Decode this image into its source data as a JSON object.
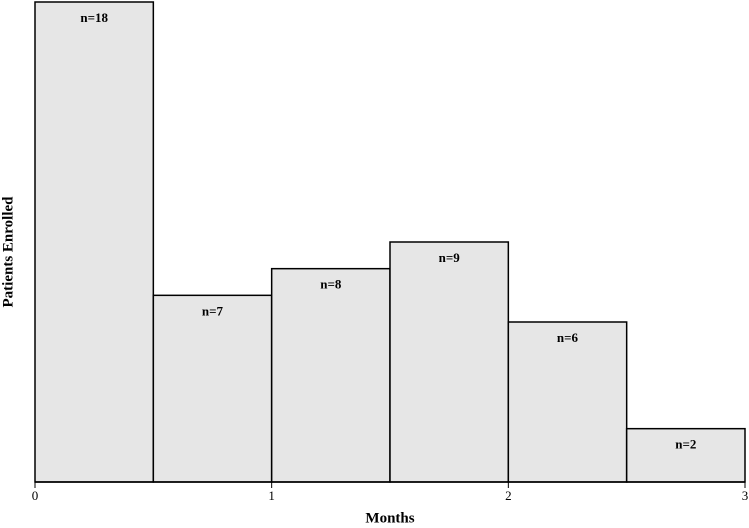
{
  "chart_data": {
    "type": "histogram",
    "x_label": "Months",
    "y_label": "Patients Enrolled",
    "bins": [
      0,
      0.5,
      1,
      1.5,
      2,
      2.5,
      3
    ],
    "values": [
      18,
      7,
      8,
      9,
      6,
      2
    ],
    "value_labels": [
      "n=18",
      "n=7",
      "n=8",
      "n=9",
      "n=6",
      "n=2"
    ],
    "color": "#e6e6e6",
    "xlim": [
      0,
      3
    ],
    "xticks": [
      0,
      1,
      2,
      3
    ],
    "ylim": [
      0,
      18
    ]
  }
}
